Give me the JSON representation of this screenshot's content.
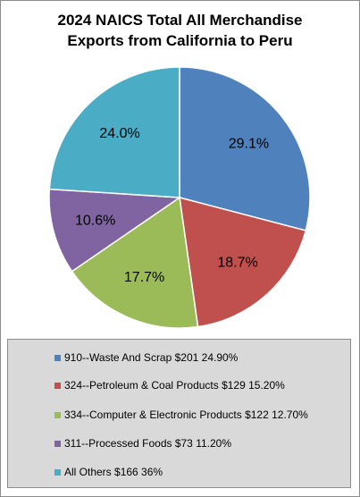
{
  "chart_data": {
    "type": "pie",
    "title": [
      "2024 NAICS Total All Merchandise",
      "Exports from California to Peru"
    ],
    "slices": [
      {
        "label": "29.1%",
        "value": 29.1,
        "color": "#4f81bd"
      },
      {
        "label": "18.7%",
        "value": 18.7,
        "color": "#c0504d"
      },
      {
        "label": "17.7%",
        "value": 17.7,
        "color": "#9bbb59"
      },
      {
        "label": "10.6%",
        "value": 10.6,
        "color": "#8064a2"
      },
      {
        "label": "24.0%",
        "value": 24.0,
        "color": "#4bacc6"
      }
    ],
    "legend": [
      {
        "text": "910--Waste And Scrap $201 24.90%",
        "color": "#4f81bd"
      },
      {
        "text": "324--Petroleum & Coal Products $129 15.20%",
        "color": "#c0504d"
      },
      {
        "text": "334--Computer & Electronic Products $122 12.70%",
        "color": "#9bbb59"
      },
      {
        "text": "311--Processed Foods $73 11.20%",
        "color": "#8064a2"
      },
      {
        "text": "All Others $166 36%",
        "color": "#4bacc6"
      }
    ],
    "legend_position": "bottom"
  }
}
